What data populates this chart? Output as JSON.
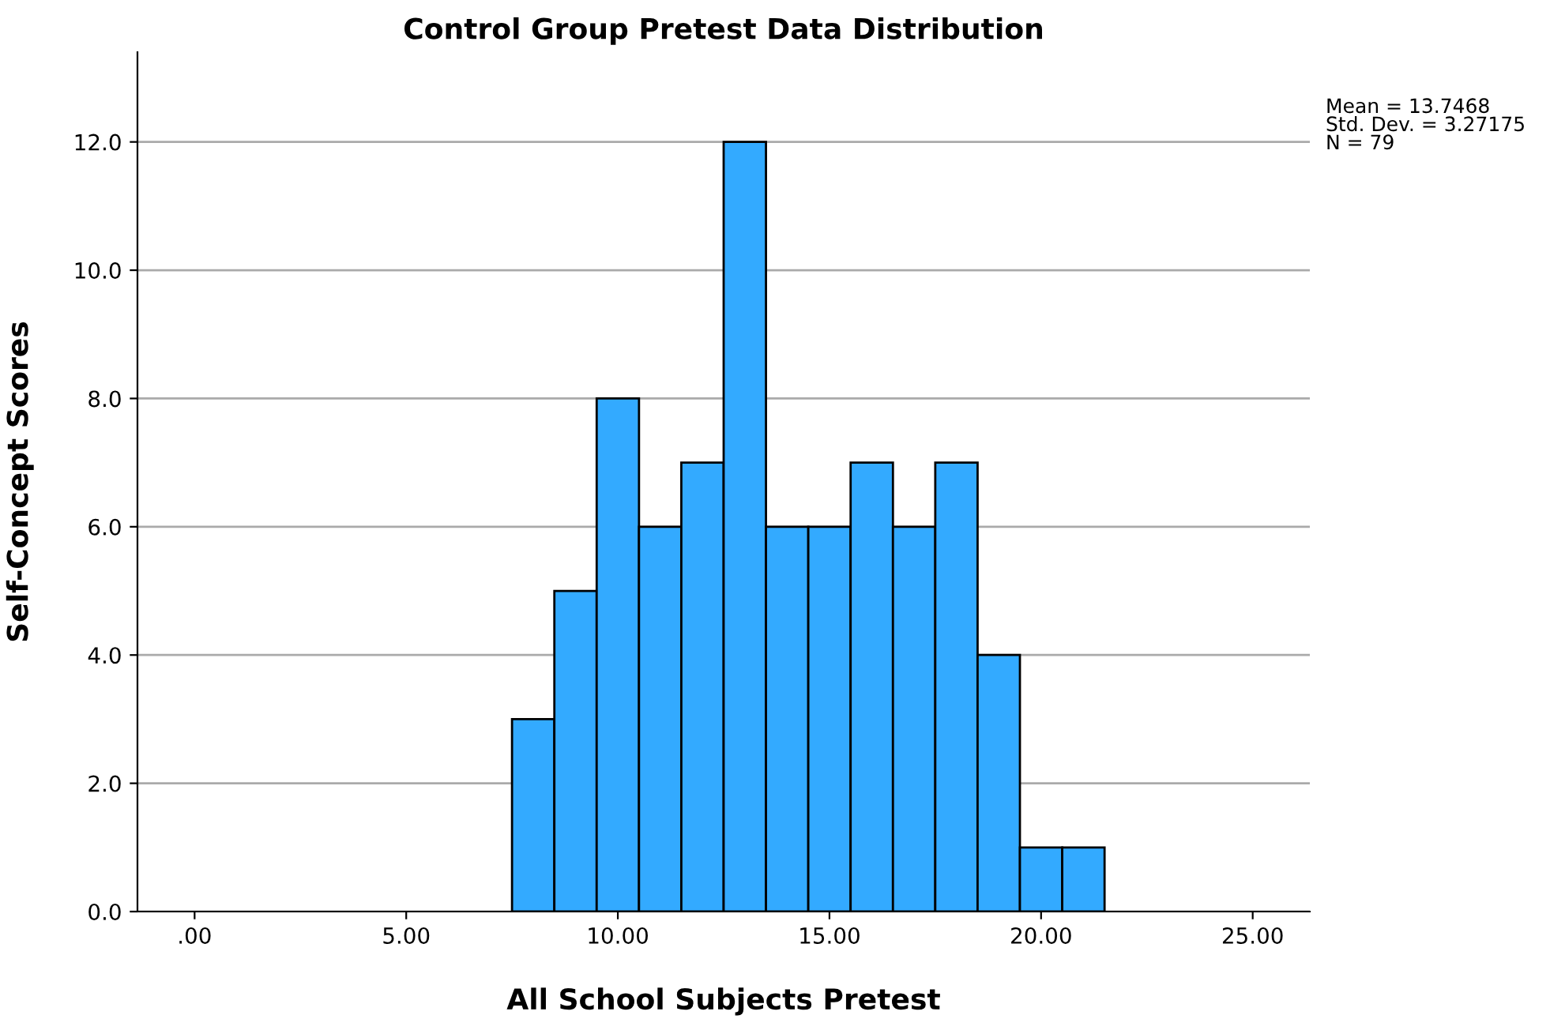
{
  "chart_data": {
    "type": "histogram",
    "title": "Control Group Pretest Data Distribution",
    "xlabel": "All School Subjects Pretest",
    "ylabel": "Self-Concept Scores",
    "bins": [
      7.5,
      8.5,
      9.5,
      10.5,
      11.5,
      12.5,
      13.5,
      14.5,
      15.5,
      16.5,
      17.5,
      18.5,
      19.5,
      20.5,
      21.5
    ],
    "values": [
      3,
      5,
      8,
      6,
      7,
      12,
      6,
      6,
      7,
      6,
      7,
      4,
      1,
      1
    ],
    "color": "#33aaff",
    "xlim": [
      -1.35,
      26.35
    ],
    "xticks": [
      {
        "value": 0,
        "label": ".00"
      },
      {
        "value": 5,
        "label": "5.00"
      },
      {
        "value": 10,
        "label": "10.00"
      },
      {
        "value": 15,
        "label": "15.00"
      },
      {
        "value": 20,
        "label": "20.00"
      },
      {
        "value": 25,
        "label": "25.00"
      }
    ],
    "ylim": [
      0,
      13.4
    ],
    "yticks": [
      {
        "value": 0,
        "label": "0.0"
      },
      {
        "value": 2,
        "label": "2.0"
      },
      {
        "value": 4,
        "label": "4.0"
      },
      {
        "value": 6,
        "label": "6.0"
      },
      {
        "value": 8,
        "label": "8.0"
      },
      {
        "value": 10,
        "label": "10.0"
      },
      {
        "value": 12,
        "label": "12.0"
      }
    ],
    "grid": "y",
    "annotations": [
      "Mean = 13.7468",
      "Std. Dev. = 3.27175",
      "N = 79"
    ]
  }
}
